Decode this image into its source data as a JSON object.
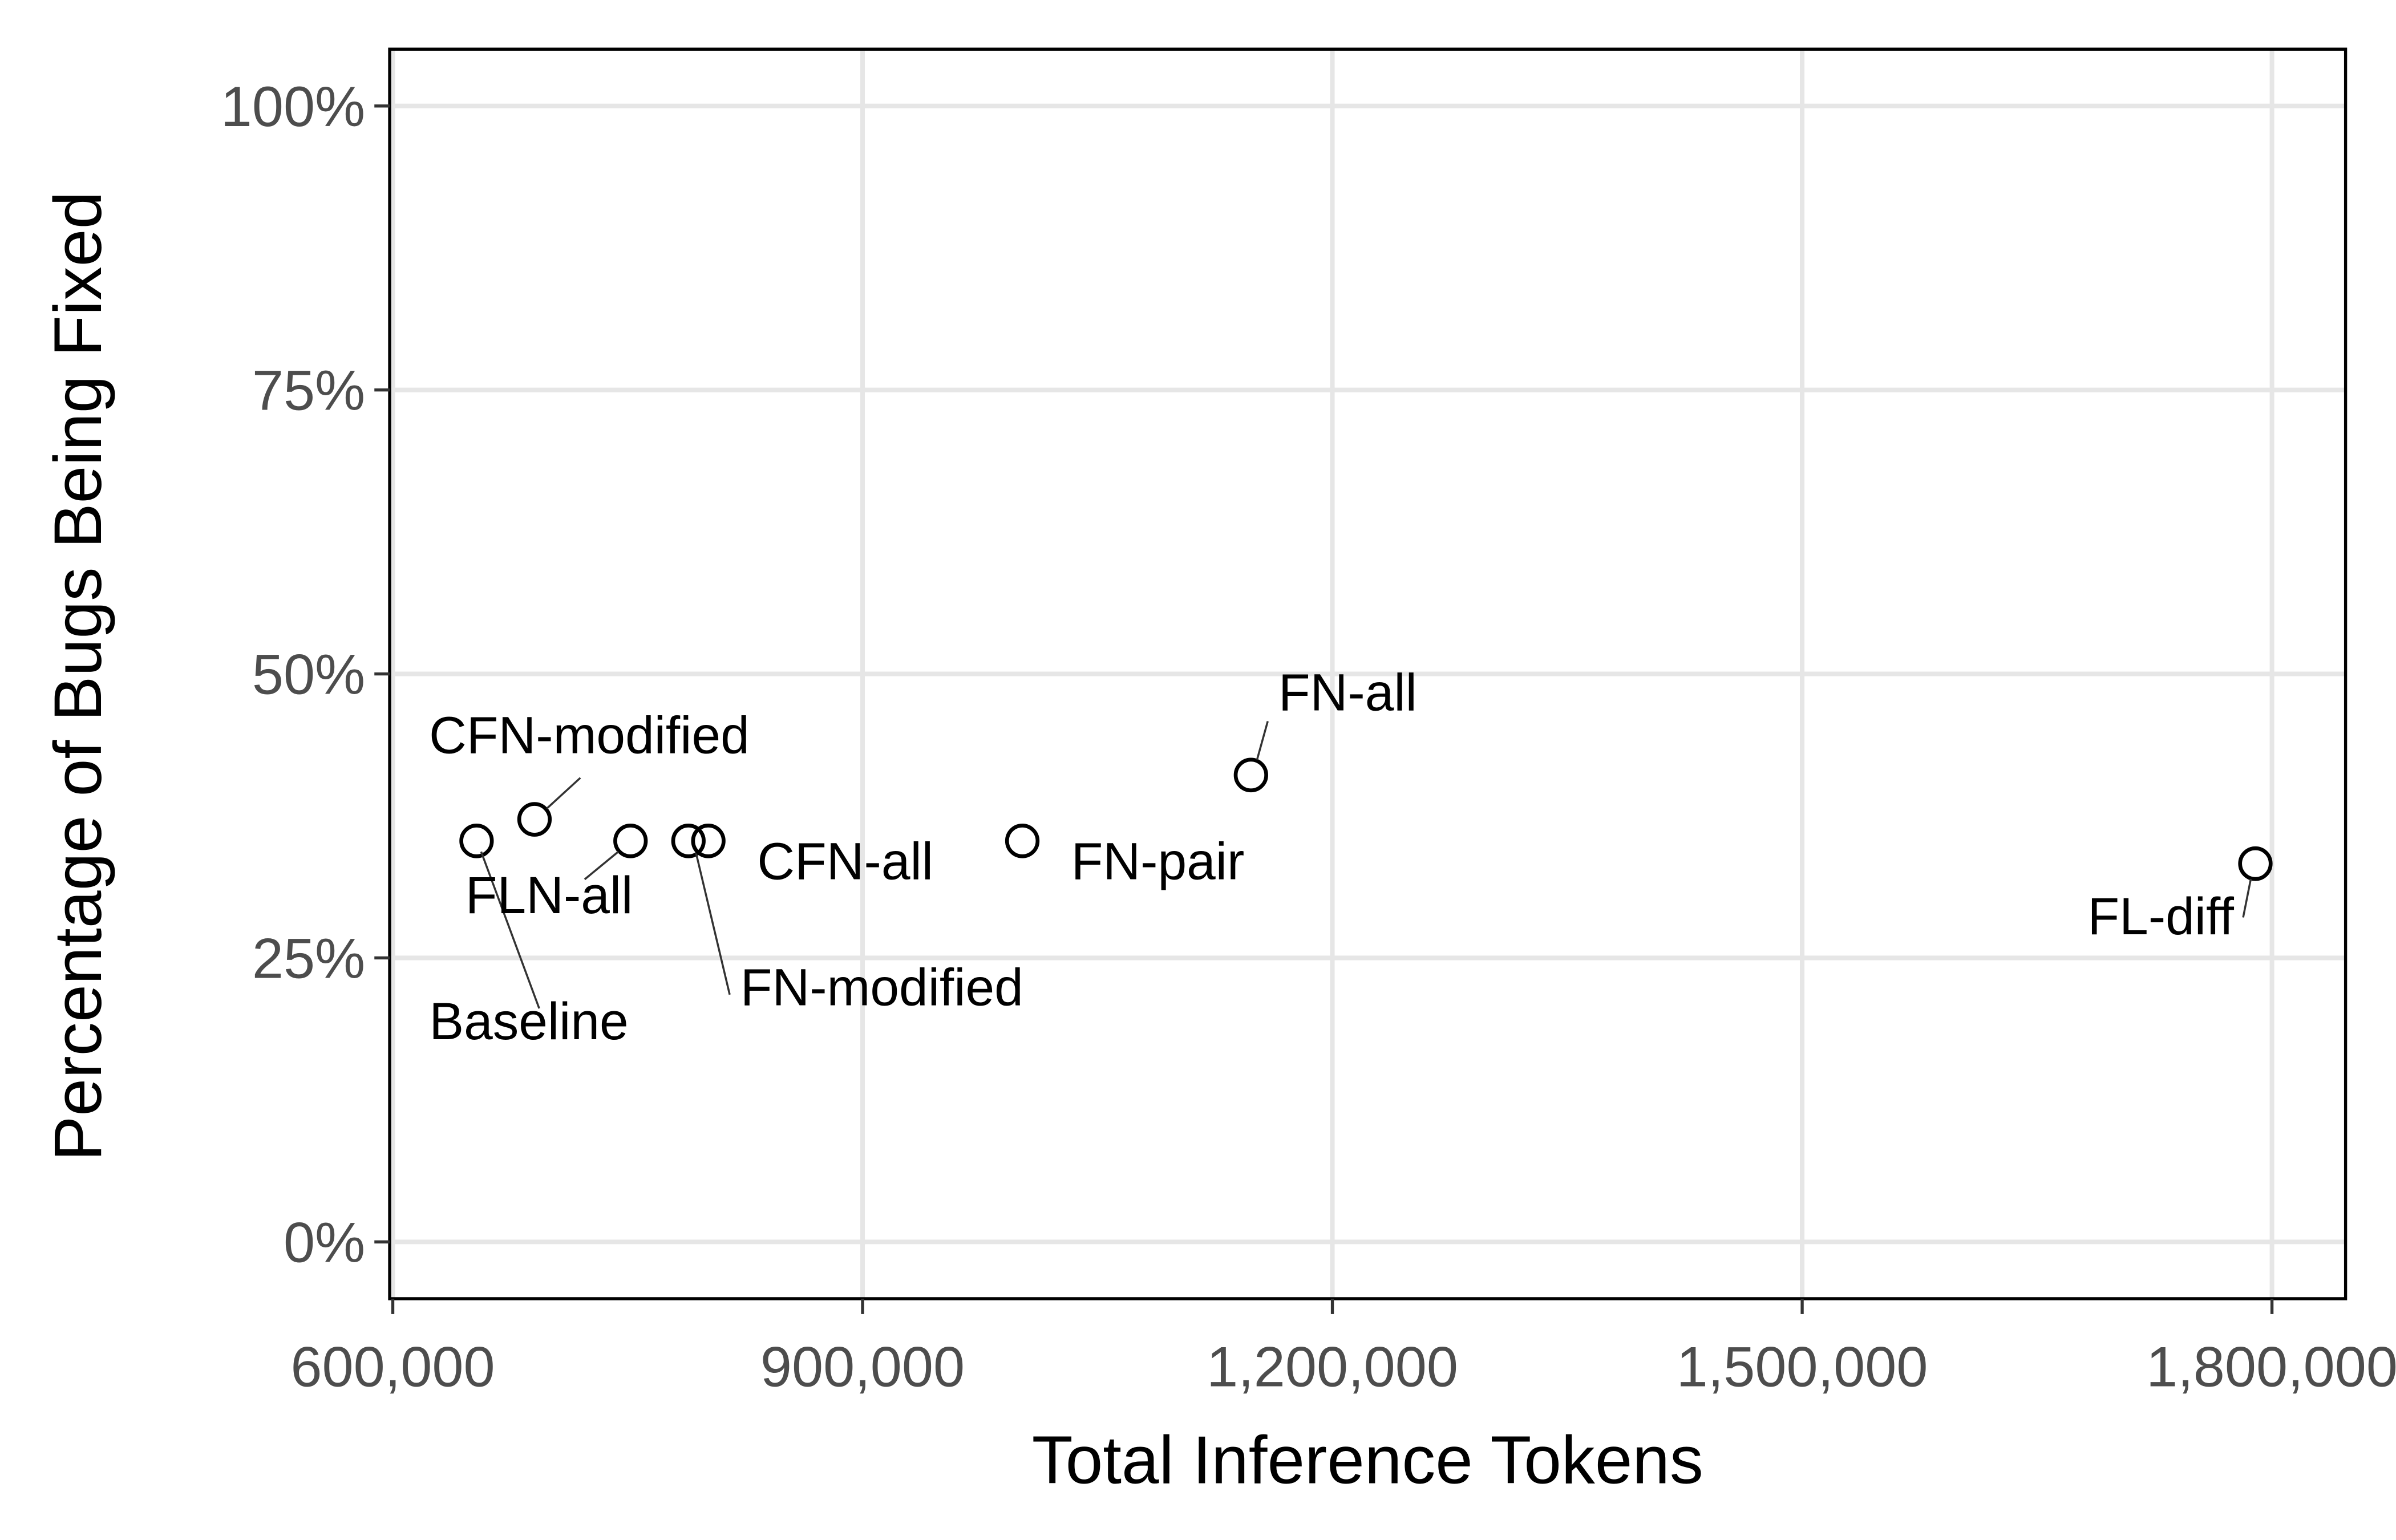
{
  "chart_data": {
    "type": "scatter",
    "x_label": "Total Inference Tokens",
    "y_label": "Percentage of Bugs Being Fixed",
    "labels": [
      "Baseline",
      "CFN-modified",
      "FLN-all",
      "FN-modified",
      "CFN-all",
      "FN-pair",
      "FN-all",
      "FL-diff"
    ],
    "x": [
      653500,
      690500,
      751800,
      788800,
      801500,
      1002000,
      1148000,
      1789400
    ],
    "values": [
      35.3,
      37.2,
      35.3,
      35.3,
      35.3,
      35.3,
      41.1,
      33.3
    ],
    "color": "#000000",
    "xlim": [
      598000,
      1847000
    ],
    "xticks": [
      {
        "value": 600000,
        "label": "600,000"
      },
      {
        "value": 900000,
        "label": "900,000"
      },
      {
        "value": 1200000,
        "label": "1,200,000"
      },
      {
        "value": 1500000,
        "label": "1,500,000"
      },
      {
        "value": 1800000,
        "label": "1,800,000"
      }
    ],
    "ylim": [
      -5,
      105
    ],
    "yticks": [
      {
        "value": 0,
        "label": "0%"
      },
      {
        "value": 25,
        "label": "25%"
      },
      {
        "value": 50,
        "label": "50%"
      },
      {
        "value": 75,
        "label": "75%"
      },
      {
        "value": 100,
        "label": "100%"
      }
    ],
    "grid": true
  }
}
